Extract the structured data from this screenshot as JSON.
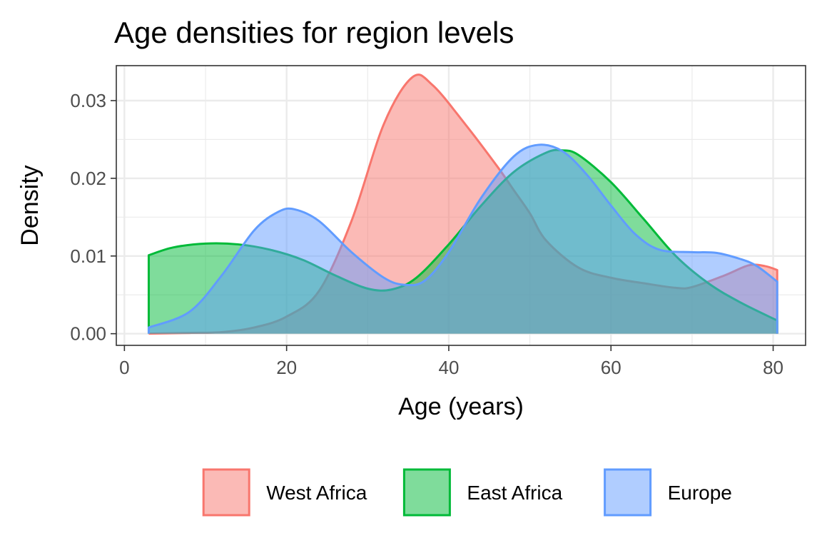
{
  "chart_data": {
    "type": "area",
    "title": "Age densities for region levels",
    "xlabel": "Age (years)",
    "ylabel": "Density",
    "xlim": [
      -1,
      84
    ],
    "ylim": [
      -0.0015,
      0.0345
    ],
    "x_ticks": [
      0,
      20,
      40,
      60,
      80
    ],
    "x_tick_labels": [
      "0",
      "20",
      "40",
      "60",
      "80"
    ],
    "y_ticks": [
      0.0,
      0.01,
      0.02,
      0.03
    ],
    "y_tick_labels": [
      "0.00",
      "0.01",
      "0.02",
      "0.03"
    ],
    "grid": true,
    "legend_position": "bottom",
    "fill_opacity": 0.5,
    "series": [
      {
        "name": "West Africa",
        "color": "#F8766D",
        "points": [
          [
            3,
            0.0
          ],
          [
            8,
            0.0001
          ],
          [
            12,
            0.0002
          ],
          [
            16,
            0.0008
          ],
          [
            20,
            0.0022
          ],
          [
            24,
            0.0055
          ],
          [
            28,
            0.0145
          ],
          [
            32,
            0.027
          ],
          [
            35.5,
            0.033
          ],
          [
            38,
            0.032
          ],
          [
            42,
            0.027
          ],
          [
            46,
            0.0215
          ],
          [
            48,
            0.0185
          ],
          [
            50,
            0.0155
          ],
          [
            52,
            0.012
          ],
          [
            56,
            0.0085
          ],
          [
            60,
            0.0072
          ],
          [
            64,
            0.0065
          ],
          [
            68,
            0.0059
          ],
          [
            70,
            0.006
          ],
          [
            74,
            0.0075
          ],
          [
            77,
            0.0088
          ],
          [
            79,
            0.0087
          ],
          [
            80.5,
            0.0082
          ]
        ]
      },
      {
        "name": "East Africa",
        "color": "#00BA38",
        "points": [
          [
            3,
            0.0101
          ],
          [
            6,
            0.0111
          ],
          [
            10,
            0.0116
          ],
          [
            14,
            0.0115
          ],
          [
            18,
            0.0108
          ],
          [
            22,
            0.0095
          ],
          [
            26,
            0.0075
          ],
          [
            30,
            0.0058
          ],
          [
            33,
            0.0057
          ],
          [
            36,
            0.0072
          ],
          [
            40,
            0.0115
          ],
          [
            44,
            0.0165
          ],
          [
            48,
            0.0208
          ],
          [
            52,
            0.0233
          ],
          [
            54,
            0.0236
          ],
          [
            56,
            0.023
          ],
          [
            60,
            0.0195
          ],
          [
            64,
            0.0148
          ],
          [
            68,
            0.01
          ],
          [
            72,
            0.0065
          ],
          [
            76,
            0.004
          ],
          [
            80.5,
            0.0017
          ]
        ]
      },
      {
        "name": "Europe",
        "color": "#619CFF",
        "points": [
          [
            3,
            0.0008
          ],
          [
            8,
            0.0028
          ],
          [
            12,
            0.0075
          ],
          [
            16,
            0.0133
          ],
          [
            19,
            0.0157
          ],
          [
            21,
            0.016
          ],
          [
            24,
            0.0145
          ],
          [
            28,
            0.0105
          ],
          [
            32,
            0.0072
          ],
          [
            34.5,
            0.0063
          ],
          [
            37,
            0.0068
          ],
          [
            40,
            0.0105
          ],
          [
            44,
            0.0175
          ],
          [
            48,
            0.0228
          ],
          [
            51,
            0.0243
          ],
          [
            54,
            0.0235
          ],
          [
            57,
            0.0205
          ],
          [
            60,
            0.0165
          ],
          [
            63,
            0.0128
          ],
          [
            66,
            0.0108
          ],
          [
            70,
            0.0105
          ],
          [
            73,
            0.0104
          ],
          [
            76,
            0.0096
          ],
          [
            78,
            0.0087
          ],
          [
            80.5,
            0.0067
          ]
        ]
      }
    ]
  }
}
